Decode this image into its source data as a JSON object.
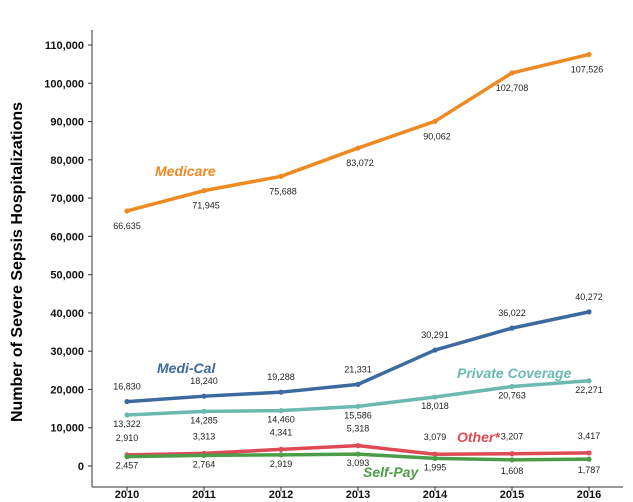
{
  "chart_data": {
    "type": "line",
    "title": "",
    "xlabel": "",
    "ylabel": "Number of Severe Sepsis Hospitalizations",
    "x": [
      2010,
      2011,
      2012,
      2013,
      2014,
      2015,
      2016
    ],
    "x_tick_labels": [
      "2010",
      "2011",
      "2012",
      "2013",
      "2014",
      "2015",
      "2016"
    ],
    "ylim": [
      0,
      110000
    ],
    "y_ticks": [
      0,
      10000,
      20000,
      30000,
      40000,
      50000,
      60000,
      70000,
      80000,
      90000,
      100000,
      110000
    ],
    "y_tick_labels": [
      "0",
      "10,000",
      "20,000",
      "30,000",
      "40,000",
      "50,000",
      "60,000",
      "70,000",
      "80,000",
      "90,000",
      "100,000",
      "110,000"
    ],
    "grid": false,
    "legend": "inline labels",
    "series": [
      {
        "name": "Medicare",
        "color": "#EE8A21",
        "values": [
          66635,
          71945,
          75688,
          83072,
          90062,
          102708,
          107526
        ],
        "labels": [
          "66,635",
          "71,945",
          "75,688",
          "83,072",
          "90,062",
          "102,708",
          "107,526"
        ]
      },
      {
        "name": "Medi-Cal",
        "color": "#3D6A9E",
        "values": [
          16830,
          18240,
          19288,
          21331,
          30291,
          36022,
          40272
        ],
        "labels": [
          "16,830",
          "18,240",
          "19,288",
          "21,331",
          "30,291",
          "36,022",
          "40,272"
        ]
      },
      {
        "name": "Private Coverage",
        "color": "#6CB9B0",
        "values": [
          13322,
          14285,
          14460,
          15586,
          18018,
          20763,
          22271
        ],
        "labels": [
          "13,322",
          "14,285",
          "14,460",
          "15,586",
          "18,018",
          "20,763",
          "22,271"
        ]
      },
      {
        "name": "Other*",
        "color": "#DE4A56",
        "values": [
          2910,
          3313,
          4341,
          5318,
          3079,
          3207,
          3417
        ],
        "labels": [
          "2,910",
          "3,313",
          "4,341",
          "5,318",
          "3,079",
          "3,207",
          "3,417"
        ]
      },
      {
        "name": "Self-Pay",
        "color": "#4B9E47",
        "values": [
          2457,
          2764,
          2919,
          3093,
          1995,
          1608,
          1787
        ],
        "labels": [
          "2,457",
          "2,764",
          "2,919",
          "3,093",
          "1,995",
          "1,608",
          "1,787"
        ]
      }
    ]
  }
}
